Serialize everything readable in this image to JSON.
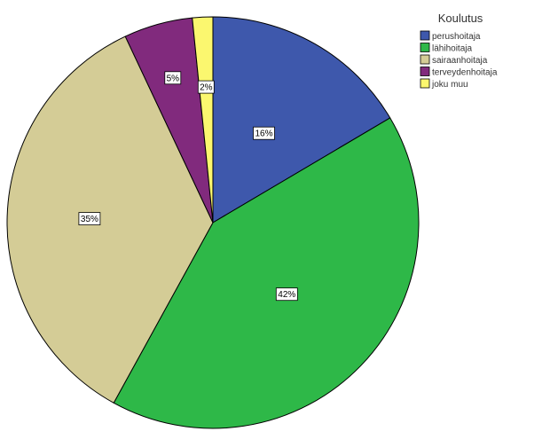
{
  "chart_data": {
    "type": "pie",
    "title": "",
    "legend_title": "Koulutus",
    "legend_position": "top-right",
    "start_angle_deg": 0,
    "direction": "clockwise",
    "categories": [
      "perushoitaja",
      "lähihoitaja",
      "sairaanhoitaja",
      "terveydenhoitaja",
      "joku muu"
    ],
    "values": [
      16.5,
      41.5,
      35.0,
      5.4,
      1.6
    ],
    "value_labels": [
      "16%",
      "42%",
      "35%",
      "5%",
      "2%"
    ],
    "colors": [
      "#3e58ac",
      "#2eb848",
      "#d4cc96",
      "#812a7d",
      "#fbf76f"
    ],
    "stroke_color": "#000000"
  }
}
